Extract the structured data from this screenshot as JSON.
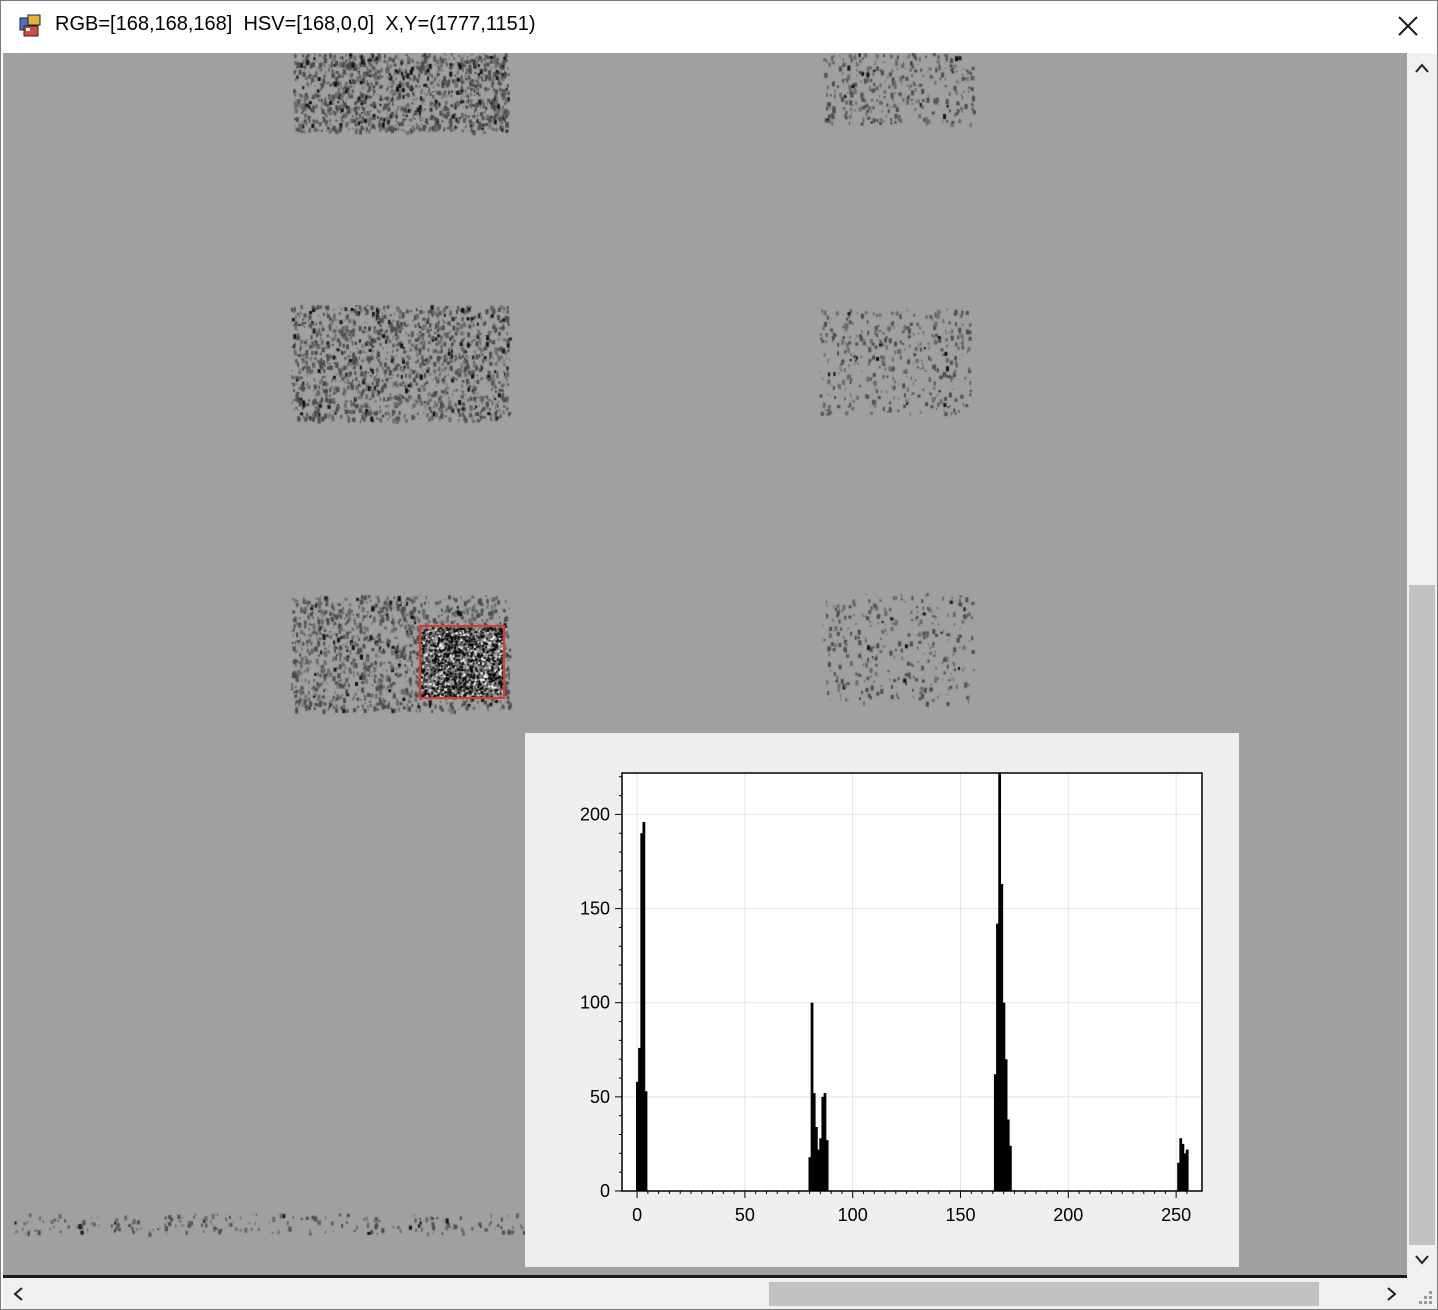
{
  "window": {
    "title": "RGB=[168,168,168]  HSV=[168,0,0]  X,Y=(1777,1151)",
    "icon": "app-window-icon",
    "close_icon": "close-icon"
  },
  "viewer": {
    "background_color": "#a0a0a0",
    "selection_color": "#e03a2e"
  },
  "histogram": {
    "chart_data": {
      "type": "bar",
      "title": "",
      "xlabel": "",
      "ylabel": "",
      "xlim": [
        -7,
        262
      ],
      "ylim": [
        0,
        222
      ],
      "x_ticks": [
        "0",
        "50",
        "100",
        "150",
        "200",
        "250"
      ],
      "y_ticks": [
        "0",
        "50",
        "100",
        "150",
        "200"
      ],
      "grid": true,
      "bar_color": "#000000",
      "x": [
        0,
        1,
        2,
        3,
        4,
        5,
        80,
        81,
        82,
        83,
        84,
        85,
        86,
        87,
        88,
        166,
        167,
        168,
        169,
        170,
        171,
        172,
        173,
        251,
        252,
        253,
        254,
        255
      ],
      "values": [
        58,
        76,
        190,
        196,
        53,
        0,
        18,
        100,
        52,
        34,
        22,
        28,
        50,
        52,
        27,
        62,
        142,
        222,
        163,
        100,
        70,
        38,
        24,
        15,
        28,
        25,
        20,
        22
      ]
    }
  },
  "scrollbars": {
    "up_icon": "chevron-up-icon",
    "down_icon": "chevron-down-icon",
    "left_icon": "chevron-left-icon",
    "right_icon": "chevron-right-icon",
    "grip_icon": "size-grip-icon"
  }
}
